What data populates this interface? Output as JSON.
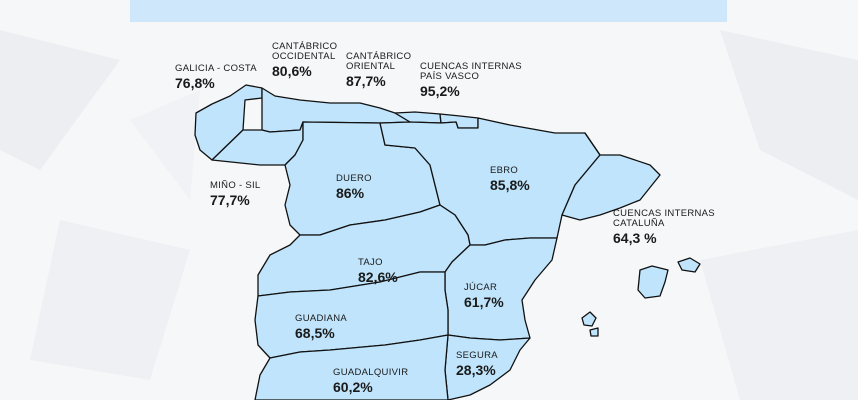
{
  "colors": {
    "banner": "#cfe7fb",
    "land": "#bfe4fb",
    "border": "#111111",
    "background": "#f6f7f9"
  },
  "basins": [
    {
      "id": "galicia-costa",
      "name": "GALICIA - COSTA",
      "value": "76,8%"
    },
    {
      "id": "cantabrico-occidental",
      "name": "CANTÁBRICO\nOCCIDENTAL",
      "value": "80,6%"
    },
    {
      "id": "cantabrico-oriental",
      "name": "CANTÁBRICO\nORIENTAL",
      "value": "87,7%"
    },
    {
      "id": "cuencas-pais-vasco",
      "name": "CUENCAS INTERNAS\nPAÍS VASCO",
      "value": "95,2%"
    },
    {
      "id": "mino-sil",
      "name": "MIÑO - SIL",
      "value": "77,7%"
    },
    {
      "id": "duero",
      "name": "DUERO",
      "value": "86%"
    },
    {
      "id": "ebro",
      "name": "EBRO",
      "value": "85,8%"
    },
    {
      "id": "cuencas-cataluna",
      "name": "CUENCAS INTERNAS\nCATALUÑA",
      "value": "64,3 %"
    },
    {
      "id": "tajo",
      "name": "TAJO",
      "value": "82,6%"
    },
    {
      "id": "jucar",
      "name": "JÚCAR",
      "value": "61,7%"
    },
    {
      "id": "guadiana",
      "name": "GUADIANA",
      "value": "68,5%"
    },
    {
      "id": "segura",
      "name": "SEGURA",
      "value": "28,3%"
    },
    {
      "id": "guadalquivir",
      "name": "GUADALQUIVIR",
      "value": "60,2%"
    }
  ]
}
